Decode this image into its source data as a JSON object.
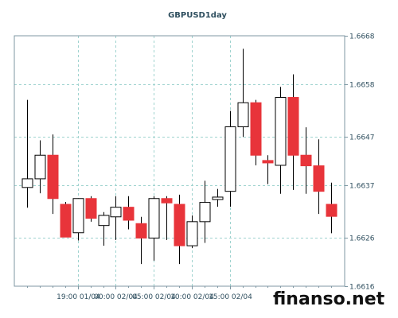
{
  "chart_data": {
    "type": "candlestick",
    "title": "GBPUSD1day",
    "y_ticks": [
      "1.6616",
      "1.6626",
      "1.6637",
      "1.6647",
      "1.6658",
      "1.6668"
    ],
    "ylim": [
      1.6616,
      1.6668
    ],
    "x_ticks": [
      "19:00 01/04",
      "00:00 02/04",
      "05:00 02/04",
      "10:00 02/04",
      "15:00 02/04"
    ],
    "grid": true,
    "colors": {
      "up_body": "#ffffff",
      "down_body": "#e8343a",
      "wick": "#000000",
      "grid": "#9fd3cf"
    },
    "candles": [
      {
        "o": 1.66365,
        "h": 1.66547,
        "l": 1.66323,
        "c": 1.66383,
        "dir": "up"
      },
      {
        "o": 1.66383,
        "h": 1.66463,
        "l": 1.66353,
        "c": 1.66432,
        "dir": "up"
      },
      {
        "o": 1.66432,
        "h": 1.66475,
        "l": 1.6631,
        "c": 1.66342,
        "dir": "down"
      },
      {
        "o": 1.6633,
        "h": 1.66335,
        "l": 1.66262,
        "c": 1.66262,
        "dir": "down"
      },
      {
        "o": 1.66271,
        "h": 1.66342,
        "l": 1.66255,
        "c": 1.66342,
        "dir": "up"
      },
      {
        "o": 1.66342,
        "h": 1.66347,
        "l": 1.66294,
        "c": 1.66301,
        "dir": "down"
      },
      {
        "o": 1.66286,
        "h": 1.66314,
        "l": 1.66244,
        "c": 1.66307,
        "dir": "up"
      },
      {
        "o": 1.66304,
        "h": 1.66347,
        "l": 1.66256,
        "c": 1.66324,
        "dir": "up"
      },
      {
        "o": 1.66324,
        "h": 1.66347,
        "l": 1.66278,
        "c": 1.66297,
        "dir": "down"
      },
      {
        "o": 1.6629,
        "h": 1.66304,
        "l": 1.66206,
        "c": 1.6626,
        "dir": "down"
      },
      {
        "o": 1.6626,
        "h": 1.66347,
        "l": 1.66213,
        "c": 1.66342,
        "dir": "up"
      },
      {
        "o": 1.66342,
        "h": 1.66347,
        "l": 1.66256,
        "c": 1.66333,
        "dir": "down"
      },
      {
        "o": 1.6633,
        "h": 1.6635,
        "l": 1.66206,
        "c": 1.66244,
        "dir": "down"
      },
      {
        "o": 1.66244,
        "h": 1.66307,
        "l": 1.66239,
        "c": 1.66294,
        "dir": "up"
      },
      {
        "o": 1.66294,
        "h": 1.66379,
        "l": 1.6625,
        "c": 1.66334,
        "dir": "up"
      },
      {
        "o": 1.6634,
        "h": 1.66362,
        "l": 1.66325,
        "c": 1.66345,
        "dir": "up"
      },
      {
        "o": 1.66357,
        "h": 1.66524,
        "l": 1.66325,
        "c": 1.66491,
        "dir": "up"
      },
      {
        "o": 1.66491,
        "h": 1.66653,
        "l": 1.6647,
        "c": 1.66541,
        "dir": "up"
      },
      {
        "o": 1.66541,
        "h": 1.66547,
        "l": 1.66411,
        "c": 1.66432,
        "dir": "down"
      },
      {
        "o": 1.66421,
        "h": 1.66432,
        "l": 1.66372,
        "c": 1.66416,
        "dir": "down"
      },
      {
        "o": 1.66411,
        "h": 1.66574,
        "l": 1.66352,
        "c": 1.66552,
        "dir": "up"
      },
      {
        "o": 1.66552,
        "h": 1.666,
        "l": 1.6636,
        "c": 1.66432,
        "dir": "down"
      },
      {
        "o": 1.66432,
        "h": 1.6649,
        "l": 1.66352,
        "c": 1.6641,
        "dir": "down"
      },
      {
        "o": 1.6641,
        "h": 1.66465,
        "l": 1.6631,
        "c": 1.66357,
        "dir": "down"
      },
      {
        "o": 1.6633,
        "h": 1.66375,
        "l": 1.6627,
        "c": 1.66305,
        "dir": "down"
      }
    ]
  },
  "watermark": "finanso.net"
}
